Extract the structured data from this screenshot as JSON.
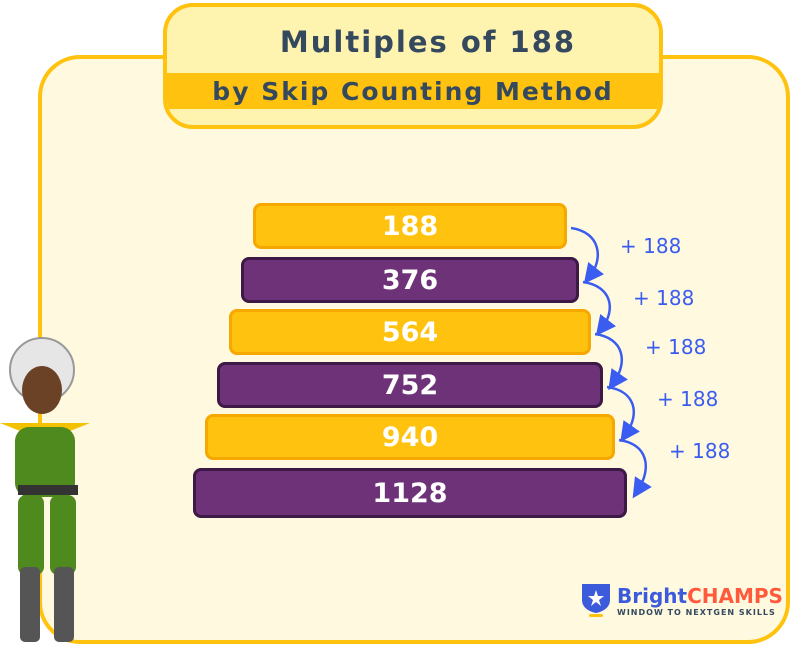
{
  "title": {
    "line1": "Multiples of  188",
    "line2": "by Skip Counting Method"
  },
  "bars": [
    {
      "value": "188",
      "color": "yellow"
    },
    {
      "value": "376",
      "color": "purple"
    },
    {
      "value": "564",
      "color": "yellow"
    },
    {
      "value": "752",
      "color": "purple"
    },
    {
      "value": "940",
      "color": "yellow"
    },
    {
      "value": "1128",
      "color": "purple"
    }
  ],
  "steps": [
    "+ 188",
    "+ 188",
    "+ 188",
    "+ 188",
    "+ 188"
  ],
  "colors": {
    "yellow": "#ffc20e",
    "purple": "#6e3279",
    "arrow": "#3a5cf0",
    "text": "#34495e"
  },
  "logo": {
    "bright": "Bright",
    "champs": "CHAMPS",
    "tagline": "WINDOW TO NEXTGEN SKILLS"
  }
}
